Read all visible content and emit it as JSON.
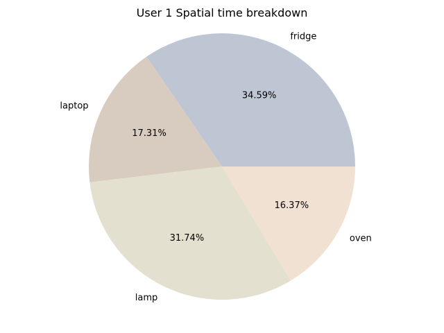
{
  "chart_data": {
    "type": "pie",
    "title": "User 1 Spatial time breakdown",
    "slices": [
      {
        "label": "fridge",
        "value": 34.59,
        "pct_label": "34.59%",
        "color": "#bdc6d2"
      },
      {
        "label": "laptop",
        "value": 17.31,
        "pct_label": "17.31%",
        "color": "#d8cbc0"
      },
      {
        "label": "lamp",
        "value": 31.74,
        "pct_label": "31.74%",
        "color": "#e3e0cf"
      },
      {
        "label": "oven",
        "value": 16.37,
        "pct_label": "16.37%",
        "color": "#f0e1d2"
      }
    ],
    "start_angle_deg": 0,
    "direction": "counterclockwise"
  }
}
